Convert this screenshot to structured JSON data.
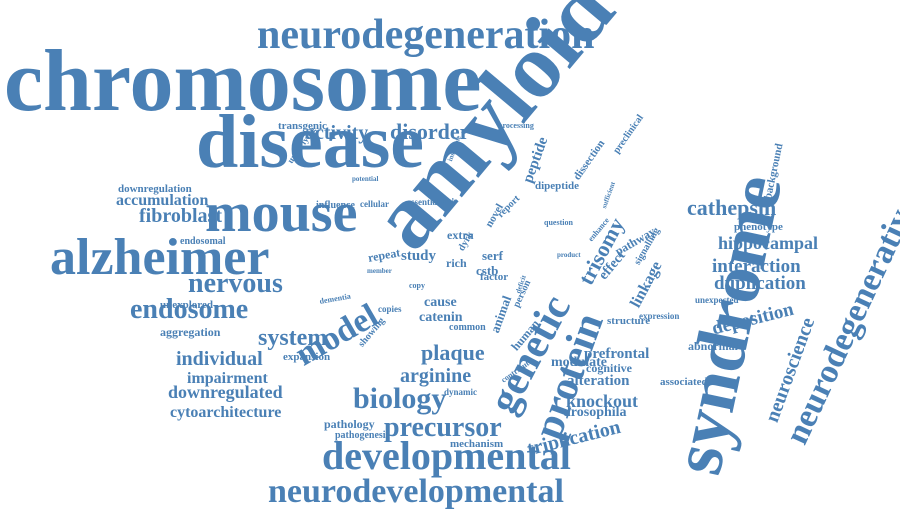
{
  "words": [
    "chromosome",
    "amyloid",
    "syndrome",
    "disease",
    "mouse",
    "alzheimer",
    "neurodegeneration",
    "developmental",
    "neurodevelopmental",
    "genetic",
    "protein",
    "neurodegenerative",
    "endosome",
    "model",
    "biology",
    "precursor",
    "nervous",
    "system",
    "trisomy",
    "cathepsin",
    "interaction",
    "duplication",
    "deposition",
    "plaque",
    "individual",
    "neuroscience",
    "activity",
    "disorder",
    "fibroblast",
    "accumulation",
    "triplication",
    "hippocampal",
    "arginine",
    "knockout",
    "impairment",
    "downregulated",
    "cytoarchitecture",
    "downregulation",
    "endosomal",
    "aggregation",
    "unexplored",
    "expansion",
    "pathology",
    "pathogenesis",
    "mechanism",
    "alteration",
    "drosophila",
    "prefrontal",
    "cognitive",
    "modulate",
    "associated",
    "abnormal",
    "expression",
    "structure",
    "linkage",
    "pathway",
    "signalling",
    "effect",
    "phenotype",
    "unexpected",
    "background",
    "dipeptide",
    "peptide",
    "dissection",
    "preclinical",
    "processing",
    "transgenic",
    "underlying",
    "potential",
    "cellular",
    "influence",
    "essential",
    "multiple",
    "repeat",
    "study",
    "rich",
    "factor",
    "cause",
    "catenin",
    "common",
    "cstb",
    "serf",
    "animal",
    "human",
    "person",
    "copy",
    "copies",
    "showing",
    "dementia",
    "member",
    "extra",
    "novel",
    "question",
    "enhance",
    "product",
    "contribute",
    "deficit",
    "dynamic",
    "dyrk",
    "report",
    "sufficient",
    "insoluble"
  ],
  "theme": {
    "word_color": "#4a80b5",
    "background": "#ffffff"
  }
}
